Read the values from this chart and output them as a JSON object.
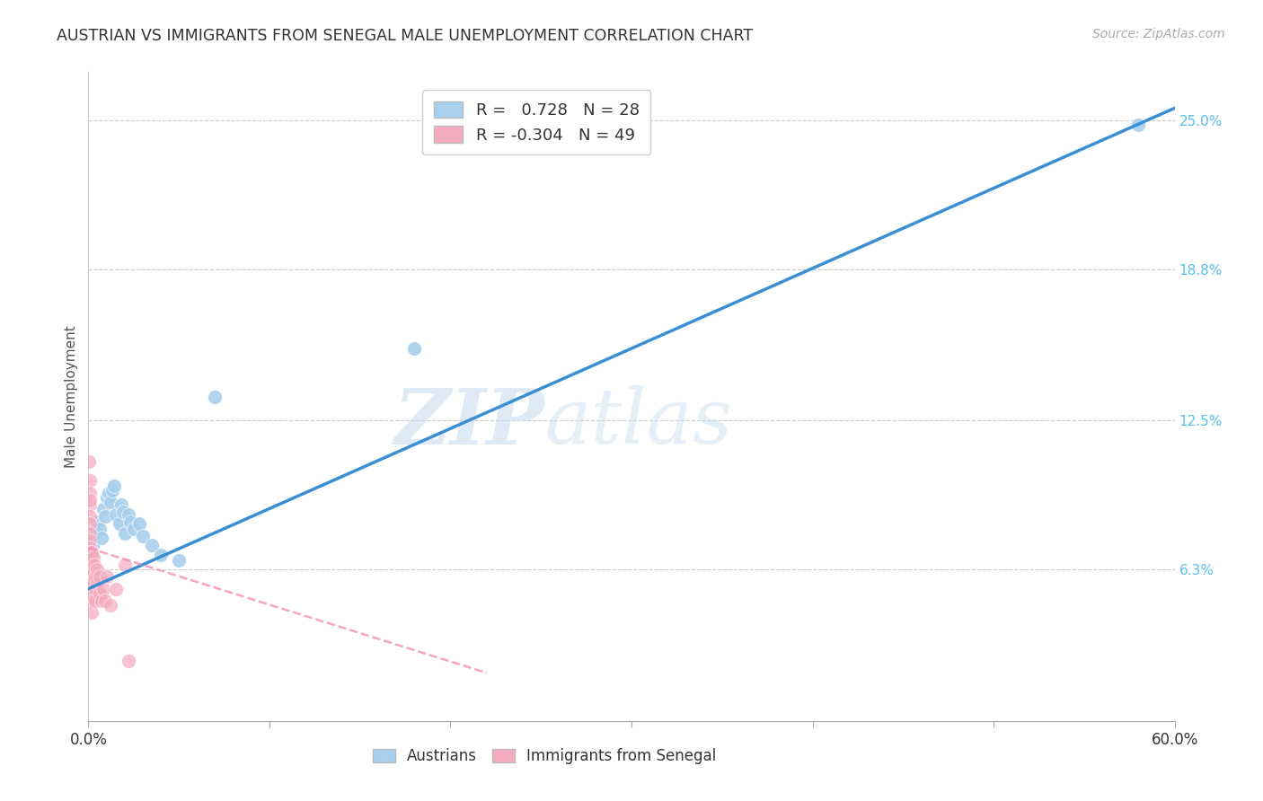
{
  "title": "AUSTRIAN VS IMMIGRANTS FROM SENEGAL MALE UNEMPLOYMENT CORRELATION CHART",
  "source": "Source: ZipAtlas.com",
  "ylabel": "Male Unemployment",
  "watermark_zip": "ZIP",
  "watermark_atlas": "atlas",
  "blue_R": "0.728",
  "blue_N": "28",
  "pink_R": "-0.304",
  "pink_N": "49",
  "blue_color": "#A8CFED",
  "pink_color": "#F4AABF",
  "blue_line_color": "#3A8FD4",
  "pink_line_color": "#F48FB1",
  "right_ytick_vals": [
    0.063,
    0.125,
    0.188,
    0.25
  ],
  "right_ytick_labels": [
    "6.3%",
    "12.5%",
    "18.8%",
    "25.0%"
  ],
  "blue_scatter": [
    [
      0.003,
      0.074
    ],
    [
      0.004,
      0.079
    ],
    [
      0.005,
      0.083
    ],
    [
      0.006,
      0.08
    ],
    [
      0.007,
      0.076
    ],
    [
      0.008,
      0.088
    ],
    [
      0.009,
      0.085
    ],
    [
      0.01,
      0.093
    ],
    [
      0.011,
      0.095
    ],
    [
      0.012,
      0.091
    ],
    [
      0.013,
      0.096
    ],
    [
      0.014,
      0.098
    ],
    [
      0.015,
      0.086
    ],
    [
      0.017,
      0.082
    ],
    [
      0.018,
      0.09
    ],
    [
      0.019,
      0.087
    ],
    [
      0.02,
      0.078
    ],
    [
      0.022,
      0.086
    ],
    [
      0.023,
      0.083
    ],
    [
      0.025,
      0.08
    ],
    [
      0.028,
      0.082
    ],
    [
      0.03,
      0.077
    ],
    [
      0.035,
      0.073
    ],
    [
      0.04,
      0.069
    ],
    [
      0.05,
      0.067
    ],
    [
      0.07,
      0.135
    ],
    [
      0.18,
      0.155
    ],
    [
      0.58,
      0.248
    ]
  ],
  "pink_scatter": [
    [
      0.0005,
      0.108
    ],
    [
      0.0006,
      0.1
    ],
    [
      0.0007,
      0.095
    ],
    [
      0.0008,
      0.09
    ],
    [
      0.0009,
      0.085
    ],
    [
      0.001,
      0.092
    ],
    [
      0.001,
      0.082
    ],
    [
      0.001,
      0.078
    ],
    [
      0.001,
      0.075
    ],
    [
      0.001,
      0.072
    ],
    [
      0.001,
      0.068
    ],
    [
      0.001,
      0.065
    ],
    [
      0.001,
      0.062
    ],
    [
      0.001,
      0.058
    ],
    [
      0.001,
      0.055
    ],
    [
      0.0012,
      0.07
    ],
    [
      0.0013,
      0.065
    ],
    [
      0.0014,
      0.06
    ],
    [
      0.0015,
      0.068
    ],
    [
      0.0016,
      0.063
    ],
    [
      0.0017,
      0.058
    ],
    [
      0.002,
      0.07
    ],
    [
      0.002,
      0.065
    ],
    [
      0.002,
      0.06
    ],
    [
      0.002,
      0.055
    ],
    [
      0.002,
      0.05
    ],
    [
      0.002,
      0.045
    ],
    [
      0.0025,
      0.062
    ],
    [
      0.0026,
      0.058
    ],
    [
      0.003,
      0.068
    ],
    [
      0.003,
      0.062
    ],
    [
      0.003,
      0.058
    ],
    [
      0.003,
      0.052
    ],
    [
      0.0035,
      0.065
    ],
    [
      0.004,
      0.06
    ],
    [
      0.004,
      0.055
    ],
    [
      0.004,
      0.05
    ],
    [
      0.005,
      0.063
    ],
    [
      0.005,
      0.057
    ],
    [
      0.006,
      0.06
    ],
    [
      0.006,
      0.053
    ],
    [
      0.007,
      0.05
    ],
    [
      0.008,
      0.055
    ],
    [
      0.009,
      0.05
    ],
    [
      0.01,
      0.06
    ],
    [
      0.012,
      0.048
    ],
    [
      0.015,
      0.055
    ],
    [
      0.02,
      0.065
    ],
    [
      0.022,
      0.025
    ]
  ],
  "xlim": [
    0.0,
    0.6
  ],
  "ylim": [
    0.0,
    0.27
  ],
  "figsize": [
    14.06,
    8.92
  ],
  "dpi": 100
}
